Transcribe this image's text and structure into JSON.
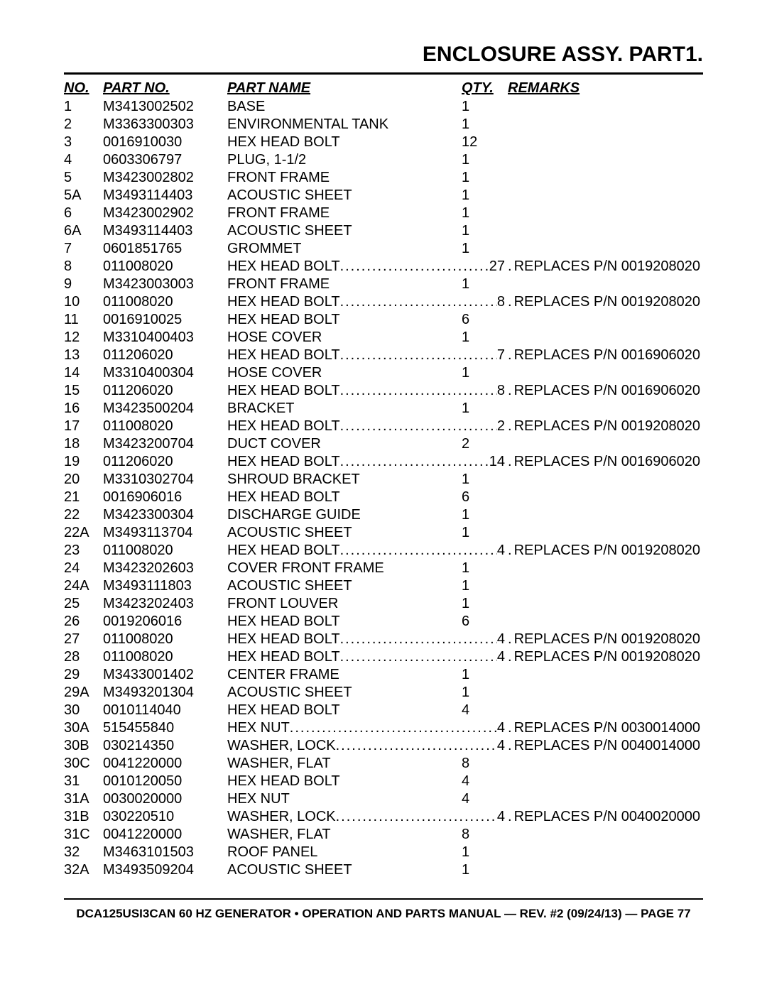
{
  "title": "ENCLOSURE ASSY. PART1.",
  "columns": {
    "no": "NO.",
    "part_no": "PART NO.",
    "part_name": "PART NAME",
    "qty": "QTY.",
    "remarks": "REMARKS"
  },
  "footer": "DCA125USI3CAN 60 HZ GENERATOR • OPERATION AND PARTS MANUAL — REV. #2 (09/24/13) — PAGE 77",
  "rows": [
    {
      "no": "1",
      "pn": "M3413002502",
      "name": "BASE",
      "qty": "1",
      "remarks": "",
      "leader": false
    },
    {
      "no": "2",
      "pn": "M3363300303",
      "name": "ENVIRONMENTAL TANK",
      "qty": "1",
      "remarks": "",
      "leader": false
    },
    {
      "no": "3",
      "pn": "0016910030",
      "name": "HEX HEAD BOLT",
      "qty": "12",
      "remarks": "",
      "leader": false
    },
    {
      "no": "4",
      "pn": "0603306797",
      "name": "PLUG, 1-1/2",
      "qty": "1",
      "remarks": "",
      "leader": false
    },
    {
      "no": "5",
      "pn": "M3423002802",
      "name": "FRONT FRAME",
      "qty": "1",
      "remarks": "",
      "leader": false
    },
    {
      "no": "5A",
      "pn": "M3493114403",
      "name": "ACOUSTIC SHEET",
      "qty": "1",
      "remarks": "",
      "leader": false
    },
    {
      "no": "6",
      "pn": "M3423002902",
      "name": "FRONT FRAME",
      "qty": "1",
      "remarks": "",
      "leader": false
    },
    {
      "no": "6A",
      "pn": "M3493114403",
      "name": "ACOUSTIC SHEET",
      "qty": "1",
      "remarks": "",
      "leader": false
    },
    {
      "no": "7",
      "pn": "0601851765",
      "name": "GROMMET",
      "qty": "1",
      "remarks": "",
      "leader": false
    },
    {
      "no": "8",
      "pn": "011008020",
      "name": "HEX HEAD BOLT",
      "qty": "27",
      "remarks": "REPLACES P/N 0019208020",
      "leader": true
    },
    {
      "no": "9",
      "pn": "M3423003003",
      "name": "FRONT FRAME",
      "qty": "1",
      "remarks": "",
      "leader": false
    },
    {
      "no": "10",
      "pn": "011008020",
      "name": "HEX HEAD BOLT",
      "qty": "8",
      "remarks": "REPLACES P/N 0019208020",
      "leader": true
    },
    {
      "no": "11",
      "pn": "0016910025",
      "name": "HEX HEAD BOLT",
      "qty": "6",
      "remarks": "",
      "leader": false
    },
    {
      "no": "12",
      "pn": "M3310400403",
      "name": "HOSE COVER",
      "qty": "1",
      "remarks": "",
      "leader": false
    },
    {
      "no": "13",
      "pn": "011206020",
      "name": "HEX HEAD BOLT",
      "qty": "7",
      "remarks": "REPLACES P/N 0016906020",
      "leader": true
    },
    {
      "no": "14",
      "pn": "M3310400304",
      "name": "HOSE COVER",
      "qty": "1",
      "remarks": "",
      "leader": false
    },
    {
      "no": "15",
      "pn": "011206020",
      "name": "HEX HEAD BOLT",
      "qty": "8",
      "remarks": "REPLACES P/N 0016906020",
      "leader": true
    },
    {
      "no": "16",
      "pn": "M3423500204",
      "name": "BRACKET",
      "qty": "1",
      "remarks": "",
      "leader": false
    },
    {
      "no": "17",
      "pn": "011008020",
      "name": "HEX HEAD BOLT",
      "qty": "2",
      "remarks": "REPLACES P/N 0019208020",
      "leader": true
    },
    {
      "no": "18",
      "pn": "M3423200704",
      "name": "DUCT COVER",
      "qty": "2",
      "remarks": "",
      "leader": false
    },
    {
      "no": "19",
      "pn": "011206020",
      "name": "HEX HEAD BOLT",
      "qty": "14",
      "remarks": "REPLACES P/N 0016906020",
      "leader": true
    },
    {
      "no": "20",
      "pn": "M3310302704",
      "name": "SHROUD BRACKET",
      "qty": "1",
      "remarks": "",
      "leader": false
    },
    {
      "no": "21",
      "pn": "0016906016",
      "name": "HEX HEAD BOLT",
      "qty": "6",
      "remarks": "",
      "leader": false
    },
    {
      "no": "22",
      "pn": "M3423300304",
      "name": "DISCHARGE GUIDE",
      "qty": "1",
      "remarks": "",
      "leader": false
    },
    {
      "no": "22A",
      "pn": "M3493113704",
      "name": "ACOUSTIC SHEET",
      "qty": "1",
      "remarks": "",
      "leader": false
    },
    {
      "no": "23",
      "pn": "011008020",
      "name": "HEX HEAD BOLT",
      "qty": "4",
      "remarks": "REPLACES P/N 0019208020",
      "leader": true
    },
    {
      "no": "24",
      "pn": "M3423202603",
      "name": "COVER FRONT FRAME",
      "qty": "1",
      "remarks": "",
      "leader": false
    },
    {
      "no": "24A",
      "pn": "M3493111803",
      "name": "ACOUSTIC SHEET",
      "qty": "1",
      "remarks": "",
      "leader": false
    },
    {
      "no": "25",
      "pn": "M3423202403",
      "name": "FRONT LOUVER",
      "qty": "1",
      "remarks": "",
      "leader": false
    },
    {
      "no": "26",
      "pn": "0019206016",
      "name": "HEX HEAD BOLT",
      "qty": "6",
      "remarks": "",
      "leader": false
    },
    {
      "no": "27",
      "pn": "011008020",
      "name": "HEX HEAD BOLT",
      "qty": "4",
      "remarks": "REPLACES P/N 0019208020",
      "leader": true
    },
    {
      "no": "28",
      "pn": "011008020",
      "name": "HEX HEAD BOLT",
      "qty": "4",
      "remarks": "REPLACES P/N 0019208020",
      "leader": true
    },
    {
      "no": "29",
      "pn": "M3433001402",
      "name": "CENTER FRAME",
      "qty": "1",
      "remarks": "",
      "leader": false
    },
    {
      "no": "29A",
      "pn": "M3493201304",
      "name": "ACOUSTIC SHEET",
      "qty": "1",
      "remarks": "",
      "leader": false
    },
    {
      "no": "30",
      "pn": "0010114040",
      "name": "HEX HEAD BOLT",
      "qty": "4",
      "remarks": "",
      "leader": false
    },
    {
      "no": "30A",
      "pn": "515455840",
      "name": "HEX NUT",
      "qty": "4",
      "remarks": "REPLACES P/N 0030014000",
      "leader": true
    },
    {
      "no": "30B",
      "pn": "030214350",
      "name": "WASHER, LOCK",
      "qty": "4",
      "remarks": "REPLACES P/N 0040014000",
      "leader": true
    },
    {
      "no": "30C",
      "pn": "0041220000",
      "name": "WASHER, FLAT",
      "qty": "8",
      "remarks": "",
      "leader": false
    },
    {
      "no": "31",
      "pn": "0010120050",
      "name": "HEX HEAD BOLT",
      "qty": "4",
      "remarks": "",
      "leader": false
    },
    {
      "no": "31A",
      "pn": "0030020000",
      "name": "HEX NUT",
      "qty": "4",
      "remarks": "",
      "leader": false
    },
    {
      "no": "31B",
      "pn": "030220510",
      "name": "WASHER, LOCK",
      "qty": "4",
      "remarks": "REPLACES P/N 0040020000",
      "leader": true
    },
    {
      "no": "31C",
      "pn": "0041220000",
      "name": "WASHER, FLAT",
      "qty": "8",
      "remarks": "",
      "leader": false
    },
    {
      "no": "32",
      "pn": "M3463101503",
      "name": "ROOF PANEL",
      "qty": "1",
      "remarks": "",
      "leader": false
    },
    {
      "no": "32A",
      "pn": "M3493509204",
      "name": "ACOUSTIC SHEET",
      "qty": "1",
      "remarks": "",
      "leader": false
    }
  ],
  "style": {
    "page_bg": "#ffffff",
    "text_color": "#000000",
    "title_fontsize": 30,
    "body_fontsize": 20,
    "footer_fontsize": 17,
    "rule_weight": 3
  }
}
